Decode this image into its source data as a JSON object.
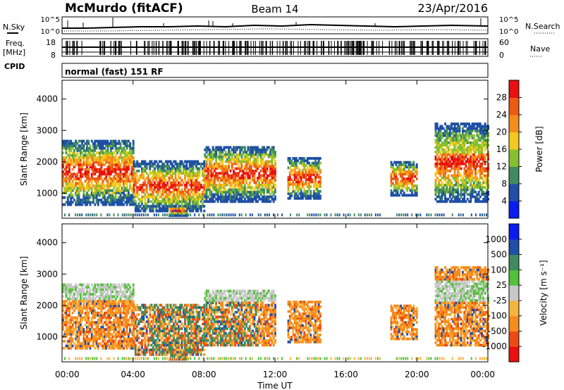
{
  "header": {
    "station": "McMurdo (fitACF)",
    "beam": "Beam 14",
    "date": "23/Apr/2016"
  },
  "noise_panel": {
    "left_label": "N.Sky",
    "right_label": "N.Search",
    "tick_top": "10^5",
    "tick_bottom": "10^0",
    "right_tick_top": "10^5",
    "right_tick_bottom": "10^0"
  },
  "freq_panel": {
    "left_label_1": "Freq.",
    "left_label_2": "[MHz]",
    "right_label": "Nave",
    "left_tick_top": "18",
    "left_tick_bottom": "8",
    "right_tick_top": "60",
    "right_tick_bottom": "0"
  },
  "cpid": {
    "label": "CPID",
    "value": "normal (fast) 151 RF"
  },
  "colors": {
    "power_scale": [
      "#0a1cf0",
      "#1f4fa6",
      "#3f8a5e",
      "#86c030",
      "#f2c91e",
      "#f58c1c",
      "#ec5a14",
      "#e81010"
    ],
    "velocity_scale": [
      "#e81010",
      "#ec4a14",
      "#f58c1c",
      "#f5b340",
      "#c8c8c8",
      "#52c238",
      "#3f8a5e",
      "#1f4fa6",
      "#0a1cf0"
    ]
  },
  "chart_data": [
    {
      "type": "heatmap",
      "name": "power",
      "ylabel": "Slant Range [km]",
      "yticks": [
        "1000",
        "2000",
        "3000",
        "4000"
      ],
      "ylim": [
        200,
        4600
      ],
      "colorbar": {
        "label": "Power [dB]",
        "ticks": [
          "4",
          "8",
          "12",
          "16",
          "20",
          "24",
          "28"
        ],
        "range": [
          0,
          32
        ]
      },
      "echo_regions": [
        {
          "t_start": 0.0,
          "t_end": 4.0,
          "r_min": 600,
          "r_max": 2700
        },
        {
          "t_start": 4.0,
          "t_end": 8.0,
          "r_min": 400,
          "r_max": 2000
        },
        {
          "t_start": 6.0,
          "t_end": 7.0,
          "r_min": 250,
          "r_max": 600
        },
        {
          "t_start": 8.0,
          "t_end": 12.0,
          "r_min": 700,
          "r_max": 2500
        },
        {
          "t_start": 12.7,
          "t_end": 14.5,
          "r_min": 800,
          "r_max": 2100
        },
        {
          "t_start": 18.5,
          "t_end": 20.0,
          "r_min": 900,
          "r_max": 2000
        },
        {
          "t_start": 21.0,
          "t_end": 24.0,
          "r_min": 700,
          "r_max": 3200
        }
      ]
    },
    {
      "type": "heatmap",
      "name": "velocity",
      "ylabel": "Slant Range [km]",
      "yticks": [
        "1000",
        "2000",
        "3000",
        "4000"
      ],
      "ylim": [
        200,
        4600
      ],
      "colorbar": {
        "label": "Velocity [m s⁻¹]",
        "ticks": [
          "-1000",
          "-500",
          "-100",
          "-25",
          "25",
          "100",
          "500",
          "1000"
        ]
      },
      "xlabel": "Time UT",
      "xticks": [
        "00:00",
        "04:00",
        "08:00",
        "12:00",
        "16:00",
        "20:00",
        "00:00"
      ],
      "xlim_hours": [
        0,
        24
      ]
    }
  ]
}
